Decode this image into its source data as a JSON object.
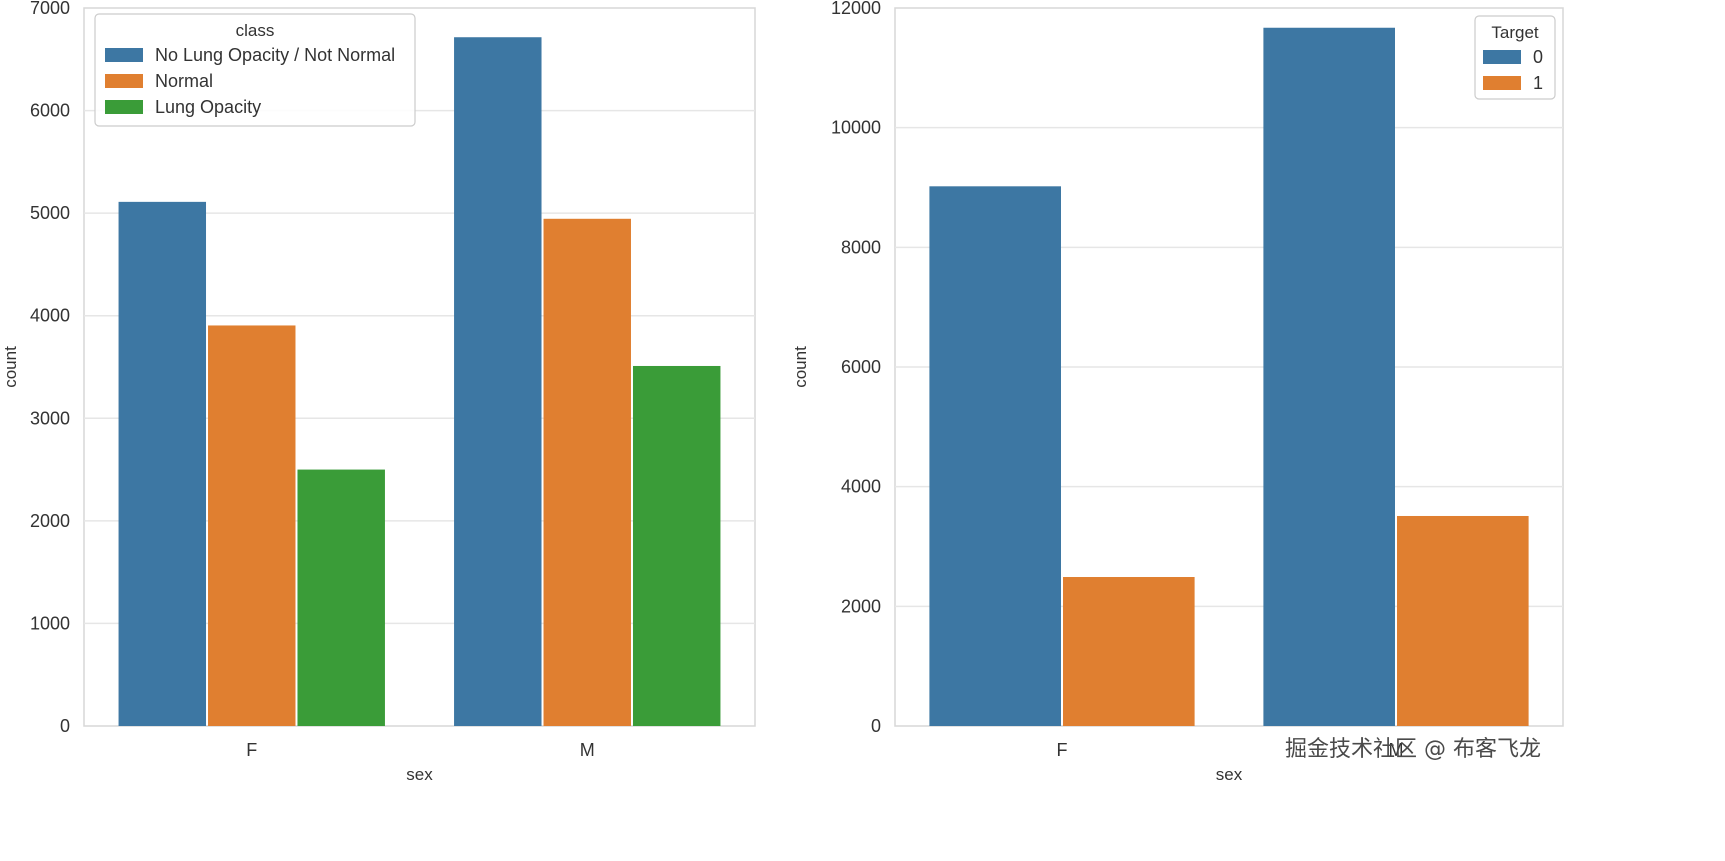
{
  "chart_data": [
    {
      "type": "bar",
      "categories": [
        "F",
        "M"
      ],
      "series": [
        {
          "name": "No Lung Opacity / Not Normal",
          "values": [
            5110,
            6715
          ],
          "color": "#3d77a3"
        },
        {
          "name": "Normal",
          "values": [
            3905,
            4945
          ],
          "color": "#e07f30"
        },
        {
          "name": "Lung Opacity",
          "values": [
            2500,
            3510
          ],
          "color": "#3a9c38"
        }
      ],
      "xlabel": "sex",
      "ylabel": "count",
      "ylim": [
        0,
        7000
      ],
      "yticks": [
        0,
        1000,
        2000,
        3000,
        4000,
        5000,
        6000,
        7000
      ],
      "grid": true,
      "legend": {
        "title": "class",
        "placement": "top-left"
      }
    },
    {
      "type": "bar",
      "categories": [
        "F",
        "M"
      ],
      "series": [
        {
          "name": "0",
          "values": [
            9020,
            11670
          ],
          "color": "#3d77a3"
        },
        {
          "name": "1",
          "values": [
            2490,
            3510
          ],
          "color": "#e07f30"
        }
      ],
      "xlabel": "sex",
      "ylabel": "count",
      "ylim": [
        0,
        12000
      ],
      "yticks": [
        0,
        2000,
        4000,
        6000,
        8000,
        10000,
        12000
      ],
      "grid": true,
      "legend": {
        "title": "Target",
        "placement": "top-right"
      }
    }
  ],
  "watermark": "掘金技术社区 @ 布客飞龙"
}
